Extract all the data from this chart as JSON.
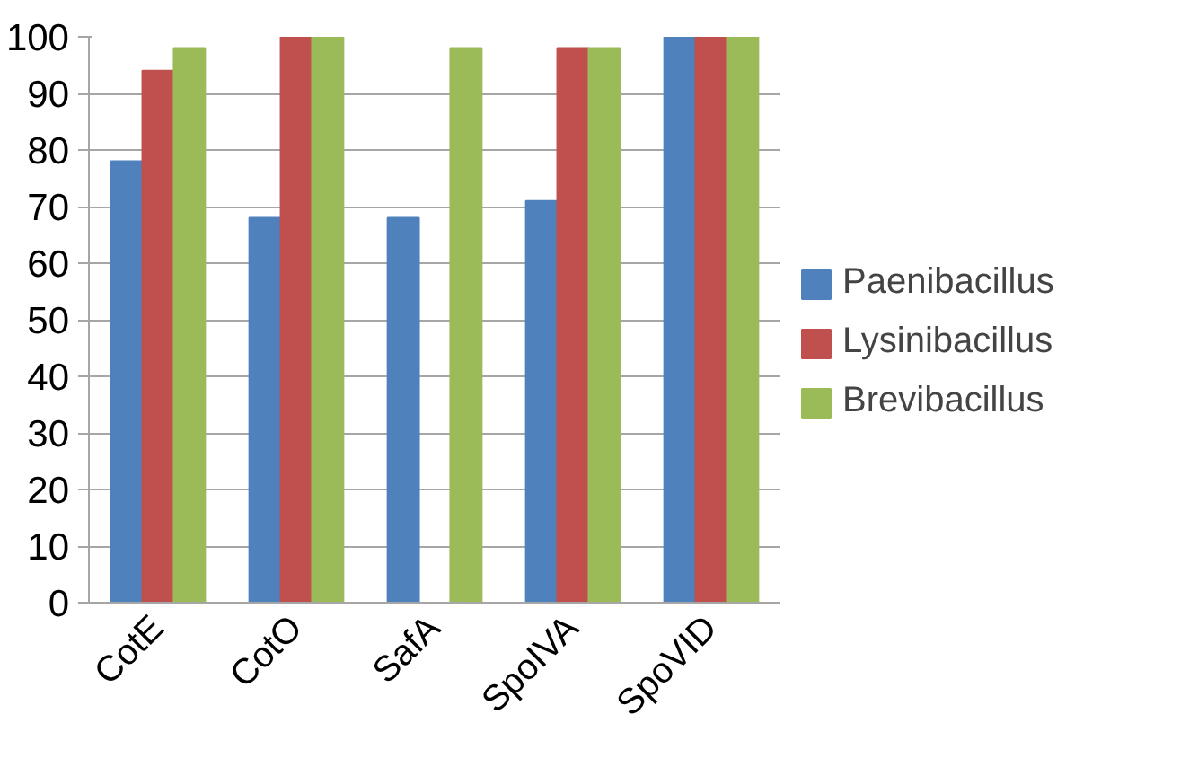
{
  "chart_data": {
    "type": "bar",
    "categories": [
      "CotE",
      "CotO",
      "SafA",
      "SpoIVA",
      "SpoVID"
    ],
    "series": [
      {
        "name": "Paenibacillus",
        "color": "#4f81bd",
        "values": [
          78,
          68,
          68,
          71,
          100
        ]
      },
      {
        "name": "Lysinibacillus",
        "color": "#c0504d",
        "values": [
          94,
          100,
          null,
          98,
          100
        ]
      },
      {
        "name": "Brevibacillus",
        "color": "#9bbb59",
        "values": [
          98,
          100,
          98,
          98,
          100
        ]
      }
    ],
    "ylim": [
      0,
      100
    ],
    "yticks": [
      0,
      10,
      20,
      30,
      40,
      50,
      60,
      70,
      80,
      90,
      100
    ],
    "grid": "y",
    "legend": "right"
  }
}
